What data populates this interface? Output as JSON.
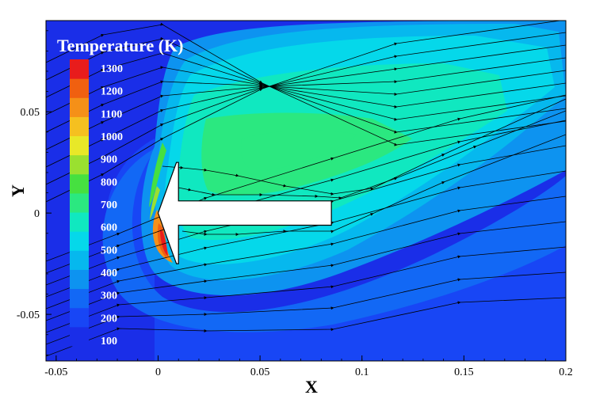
{
  "chart_data": {
    "type": "heatmap",
    "title": "",
    "xlabel": "X",
    "ylabel": "Y",
    "xlim": [
      -0.055,
      0.2
    ],
    "ylim": [
      -0.073,
      0.095
    ],
    "x_ticks": [
      {
        "value": -0.05,
        "label": "-0.05"
      },
      {
        "value": 0,
        "label": "0"
      },
      {
        "value": 0.05,
        "label": "0.05"
      },
      {
        "value": 0.1,
        "label": "0.1"
      },
      {
        "value": 0.15,
        "label": "0.15"
      },
      {
        "value": 0.2,
        "label": "0.2"
      }
    ],
    "y_ticks": [
      {
        "value": -0.05,
        "label": "-0.05"
      },
      {
        "value": 0,
        "label": "0"
      },
      {
        "value": 0.05,
        "label": "0.05"
      }
    ],
    "colorbar": {
      "title": "Temperature (K)",
      "levels": [
        100,
        200,
        300,
        400,
        500,
        600,
        700,
        800,
        900,
        1000,
        1100,
        1200,
        1300
      ],
      "level_labels": [
        "100",
        "200",
        "300",
        "400",
        "500",
        "600",
        "700",
        "800",
        "900",
        "1000",
        "1100",
        "1200",
        "1300"
      ],
      "colors": [
        "#1a2ee8",
        "#1846f5",
        "#1268f5",
        "#0d93f0",
        "#06b8ee",
        "#05d8ea",
        "#10e8c0",
        "#2be880",
        "#46e040",
        "#9ae030",
        "#e8e828",
        "#f5c020",
        "#f59018",
        "#f06010",
        "#e81c1c"
      ],
      "placement": "top-left"
    },
    "geometry": {
      "body_outline": [
        [
          0.0,
          0.0
        ],
        [
          0.009,
          0.025
        ],
        [
          0.01,
          0.025
        ],
        [
          0.01,
          0.006
        ],
        [
          0.085,
          0.006
        ],
        [
          0.085,
          -0.006
        ],
        [
          0.01,
          -0.006
        ],
        [
          0.01,
          -0.025
        ],
        [
          0.009,
          -0.025
        ]
      ]
    },
    "background_color": "#1a2ee8",
    "streamlines": true
  }
}
